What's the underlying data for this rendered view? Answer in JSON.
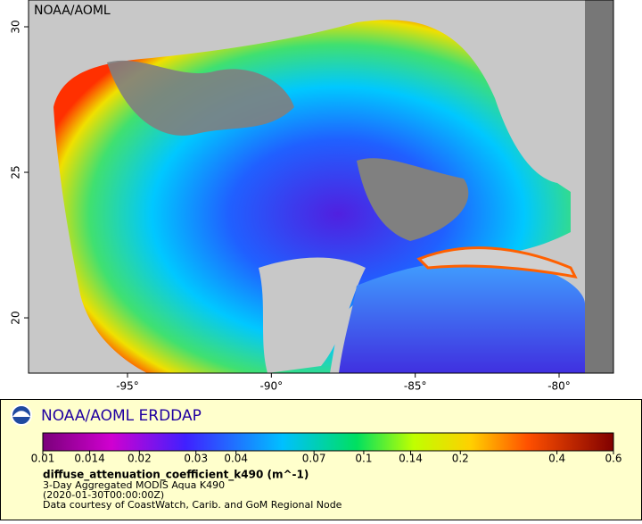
{
  "map": {
    "watermark": "NOAA/AOML",
    "xlim": [
      -98.44,
      -78.11
    ],
    "ylim": [
      18.1,
      30.92
    ],
    "xticks": [
      {
        "value": -95,
        "label": "-95°"
      },
      {
        "value": -90,
        "label": "-90°"
      },
      {
        "value": -85,
        "label": "-85°"
      },
      {
        "value": -80,
        "label": "-80°"
      }
    ],
    "yticks": [
      20,
      25,
      30
    ]
  },
  "legend": {
    "title": "NOAA/AOML ERDDAP",
    "colorbar": {
      "log_scale": true,
      "lim": [
        0.01,
        0.6
      ],
      "ticks": [
        0.01,
        0.014,
        0.02,
        0.03,
        0.04,
        0.07,
        0.1,
        0.14,
        0.2,
        0.4,
        0.6
      ]
    },
    "variable": "diffuse_attenuation_coefficient_k490 (m^-1)",
    "lines": [
      "3-Day Aggregated MODIS Aqua K490",
      "(2020-01-30T00:00:00Z)",
      "Data courtesy of CoastWatch, Carib. and GoM Regional Node"
    ]
  }
}
